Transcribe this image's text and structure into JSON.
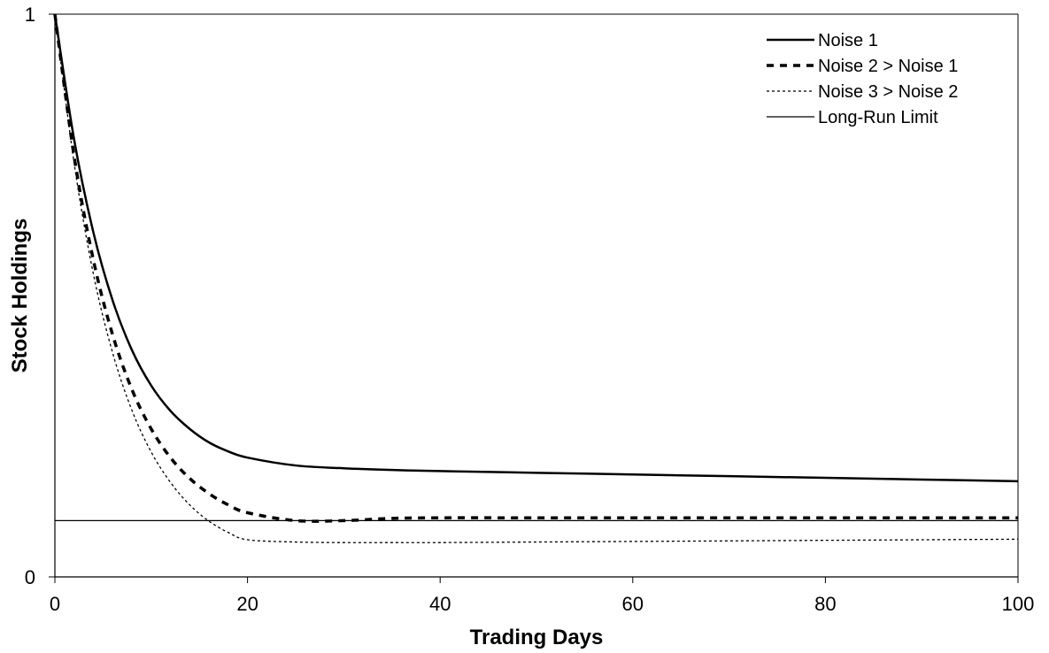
{
  "chart_data": {
    "type": "line",
    "title": "",
    "xlabel": "Trading Days",
    "ylabel": "Stock Holdings",
    "xlim": [
      0,
      100
    ],
    "ylim": [
      0,
      1
    ],
    "x_ticks": [
      "0",
      "20",
      "40",
      "60",
      "80",
      "100"
    ],
    "y_ticks": [
      "0",
      "1"
    ],
    "grid": false,
    "legend_position": "top-right",
    "x": [
      0,
      2,
      4,
      6,
      8,
      10,
      12,
      14,
      16,
      18,
      20,
      25,
      30,
      35,
      40,
      50,
      60,
      70,
      80,
      90,
      100
    ],
    "series": [
      {
        "name": "Noise 1",
        "style": "solid-thick",
        "values": [
          1.0,
          0.777,
          0.612,
          0.491,
          0.403,
          0.34,
          0.295,
          0.263,
          0.239,
          0.223,
          0.212,
          0.198,
          0.193,
          0.19,
          0.188,
          0.185,
          0.182,
          0.179,
          0.176,
          0.173,
          0.17
        ]
      },
      {
        "name": "Noise 2 > Noise 1",
        "style": "dashed-thick",
        "values": [
          1.0,
          0.747,
          0.563,
          0.43,
          0.333,
          0.263,
          0.212,
          0.175,
          0.148,
          0.128,
          0.114,
          0.1,
          0.1,
          0.104,
          0.105,
          0.105,
          0.105,
          0.105,
          0.105,
          0.105,
          0.105
        ]
      },
      {
        "name": "Noise 3 > Noise 2",
        "style": "dotted",
        "values": [
          1.0,
          0.735,
          0.538,
          0.398,
          0.296,
          0.222,
          0.168,
          0.128,
          0.099,
          0.079,
          0.066,
          0.062,
          0.061,
          0.061,
          0.061,
          0.062,
          0.063,
          0.064,
          0.065,
          0.066,
          0.067
        ]
      },
      {
        "name": "Long-Run Limit",
        "style": "solid-thin",
        "values": [
          0.1,
          0.1,
          0.1,
          0.1,
          0.1,
          0.1,
          0.1,
          0.1,
          0.1,
          0.1,
          0.1,
          0.1,
          0.1,
          0.1,
          0.1,
          0.1,
          0.1,
          0.1,
          0.1,
          0.1,
          0.1
        ]
      }
    ]
  }
}
